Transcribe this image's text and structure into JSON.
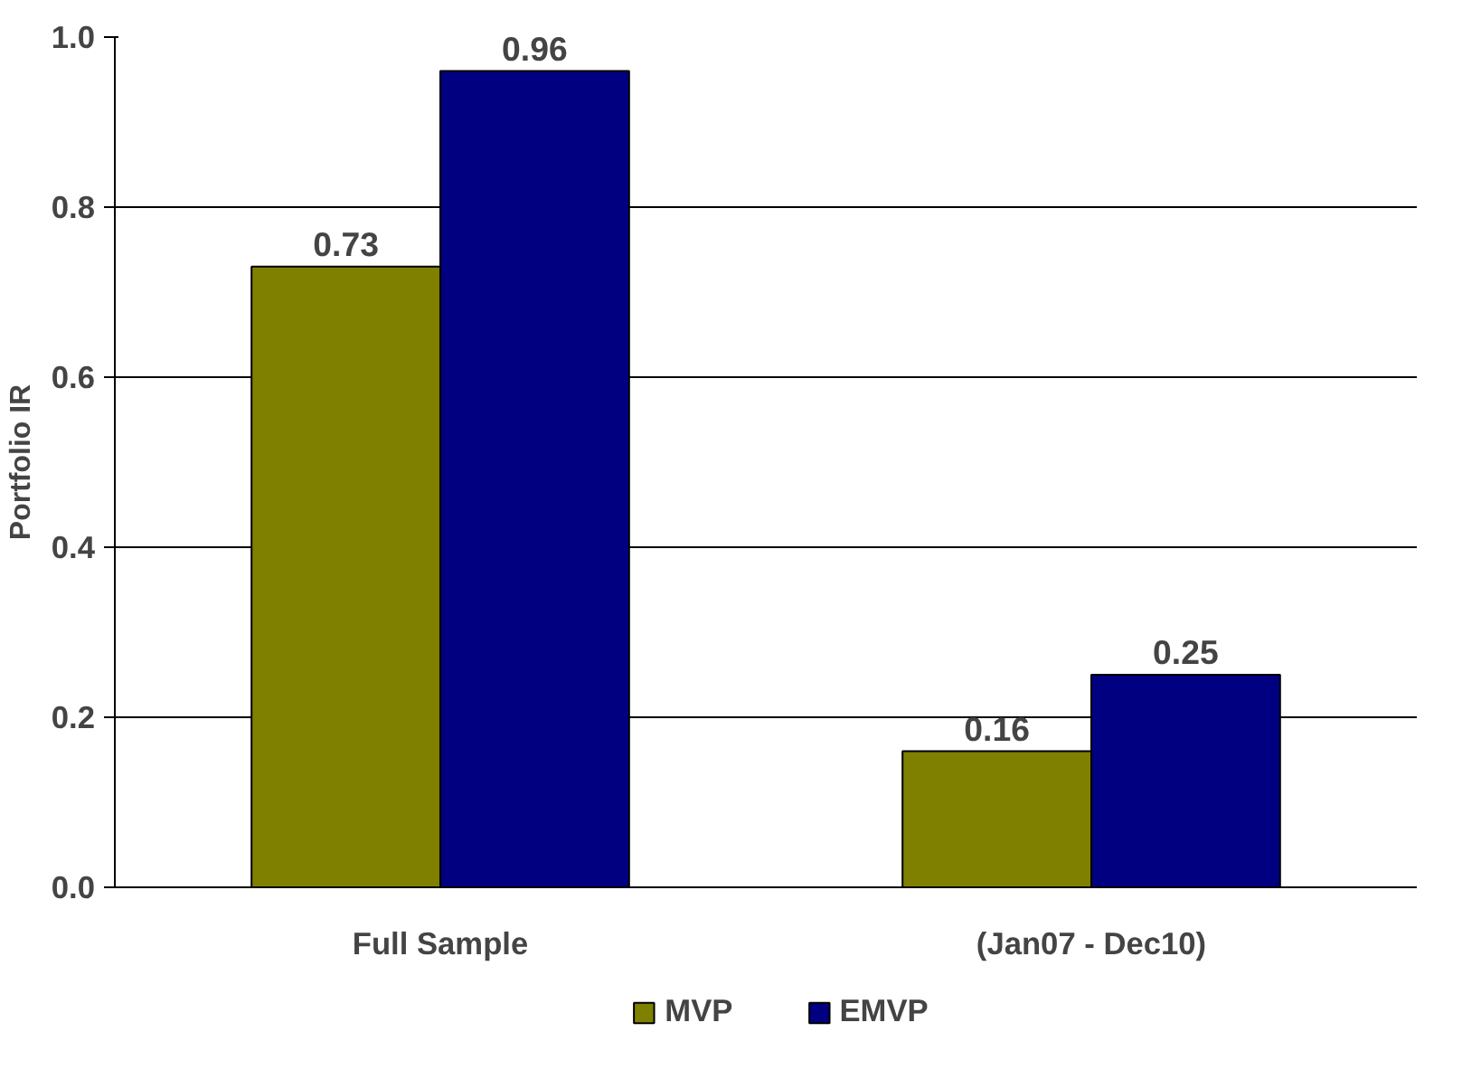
{
  "chart_data": {
    "type": "bar",
    "ylabel": "Portfolio IR",
    "categories": [
      "Full Sample",
      "(Jan07 - Dec10)"
    ],
    "series": [
      {
        "name": "MVP",
        "color": "#808000",
        "values": [
          0.73,
          0.16
        ]
      },
      {
        "name": "EMVP",
        "color": "#000080",
        "values": [
          0.96,
          0.25
        ]
      }
    ],
    "ylim": [
      0,
      1.0
    ],
    "yticks": [
      {
        "value": 0,
        "label": "0.0"
      },
      {
        "value": 0.2,
        "label": "0.2"
      },
      {
        "value": 0.4,
        "label": "0.4"
      },
      {
        "value": 0.6,
        "label": "0.6"
      },
      {
        "value": 0.8,
        "label": "0.8"
      },
      {
        "value": 1.0,
        "label": "1.0"
      }
    ],
    "grid": "y",
    "legend": "bottom",
    "data_labels": true
  }
}
